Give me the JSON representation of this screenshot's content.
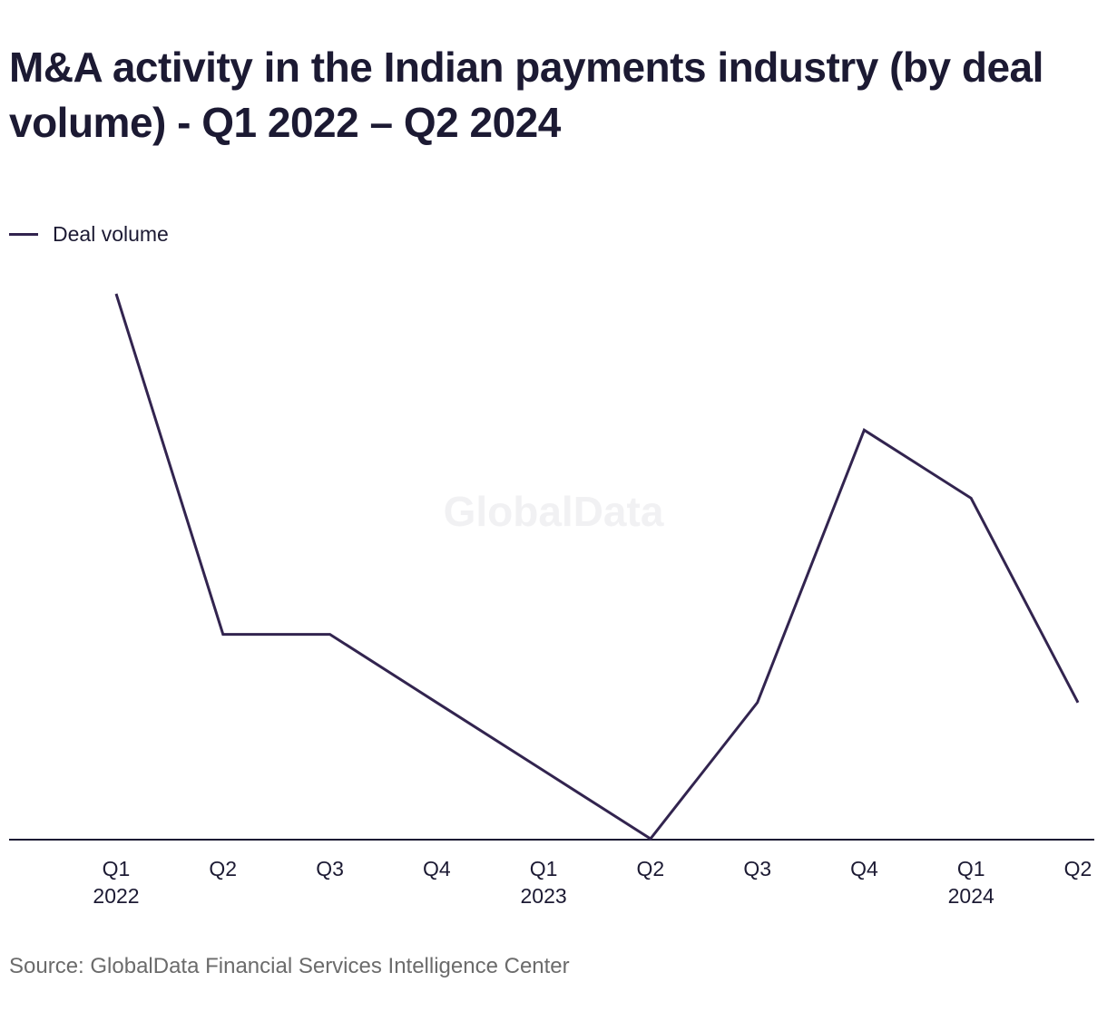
{
  "header": {
    "title": "M&A activity in the Indian payments industry (by deal volume) - Q1 2022 – Q2 2024"
  },
  "legend": {
    "label": "Deal volume"
  },
  "watermark": "GlobalData",
  "footer": {
    "source": "Source: GlobalData Financial Services Intelligence Center"
  },
  "colors": {
    "series": "#32244f",
    "axis": "#1c1a33",
    "text": "#1c1a33",
    "source_text": "#6b6b6b"
  },
  "chart_data": {
    "type": "line",
    "title": "M&A activity in the Indian payments industry (by deal volume) - Q1 2022 – Q2 2024",
    "xlabel": "",
    "ylabel": "",
    "grid": false,
    "legend_position": "top-left",
    "y_axis_labels_shown": false,
    "categories": [
      {
        "quarter": "Q1",
        "year": "2022"
      },
      {
        "quarter": "Q2",
        "year": ""
      },
      {
        "quarter": "Q3",
        "year": ""
      },
      {
        "quarter": "Q4",
        "year": ""
      },
      {
        "quarter": "Q1",
        "year": "2023"
      },
      {
        "quarter": "Q2",
        "year": ""
      },
      {
        "quarter": "Q3",
        "year": ""
      },
      {
        "quarter": "Q4",
        "year": ""
      },
      {
        "quarter": "Q1",
        "year": "2024"
      },
      {
        "quarter": "Q2",
        "year": ""
      }
    ],
    "series": [
      {
        "name": "Deal volume",
        "values": [
          8,
          3,
          3,
          2,
          1,
          0,
          2,
          6,
          5,
          2
        ]
      }
    ],
    "ylim": [
      0,
      8
    ]
  }
}
